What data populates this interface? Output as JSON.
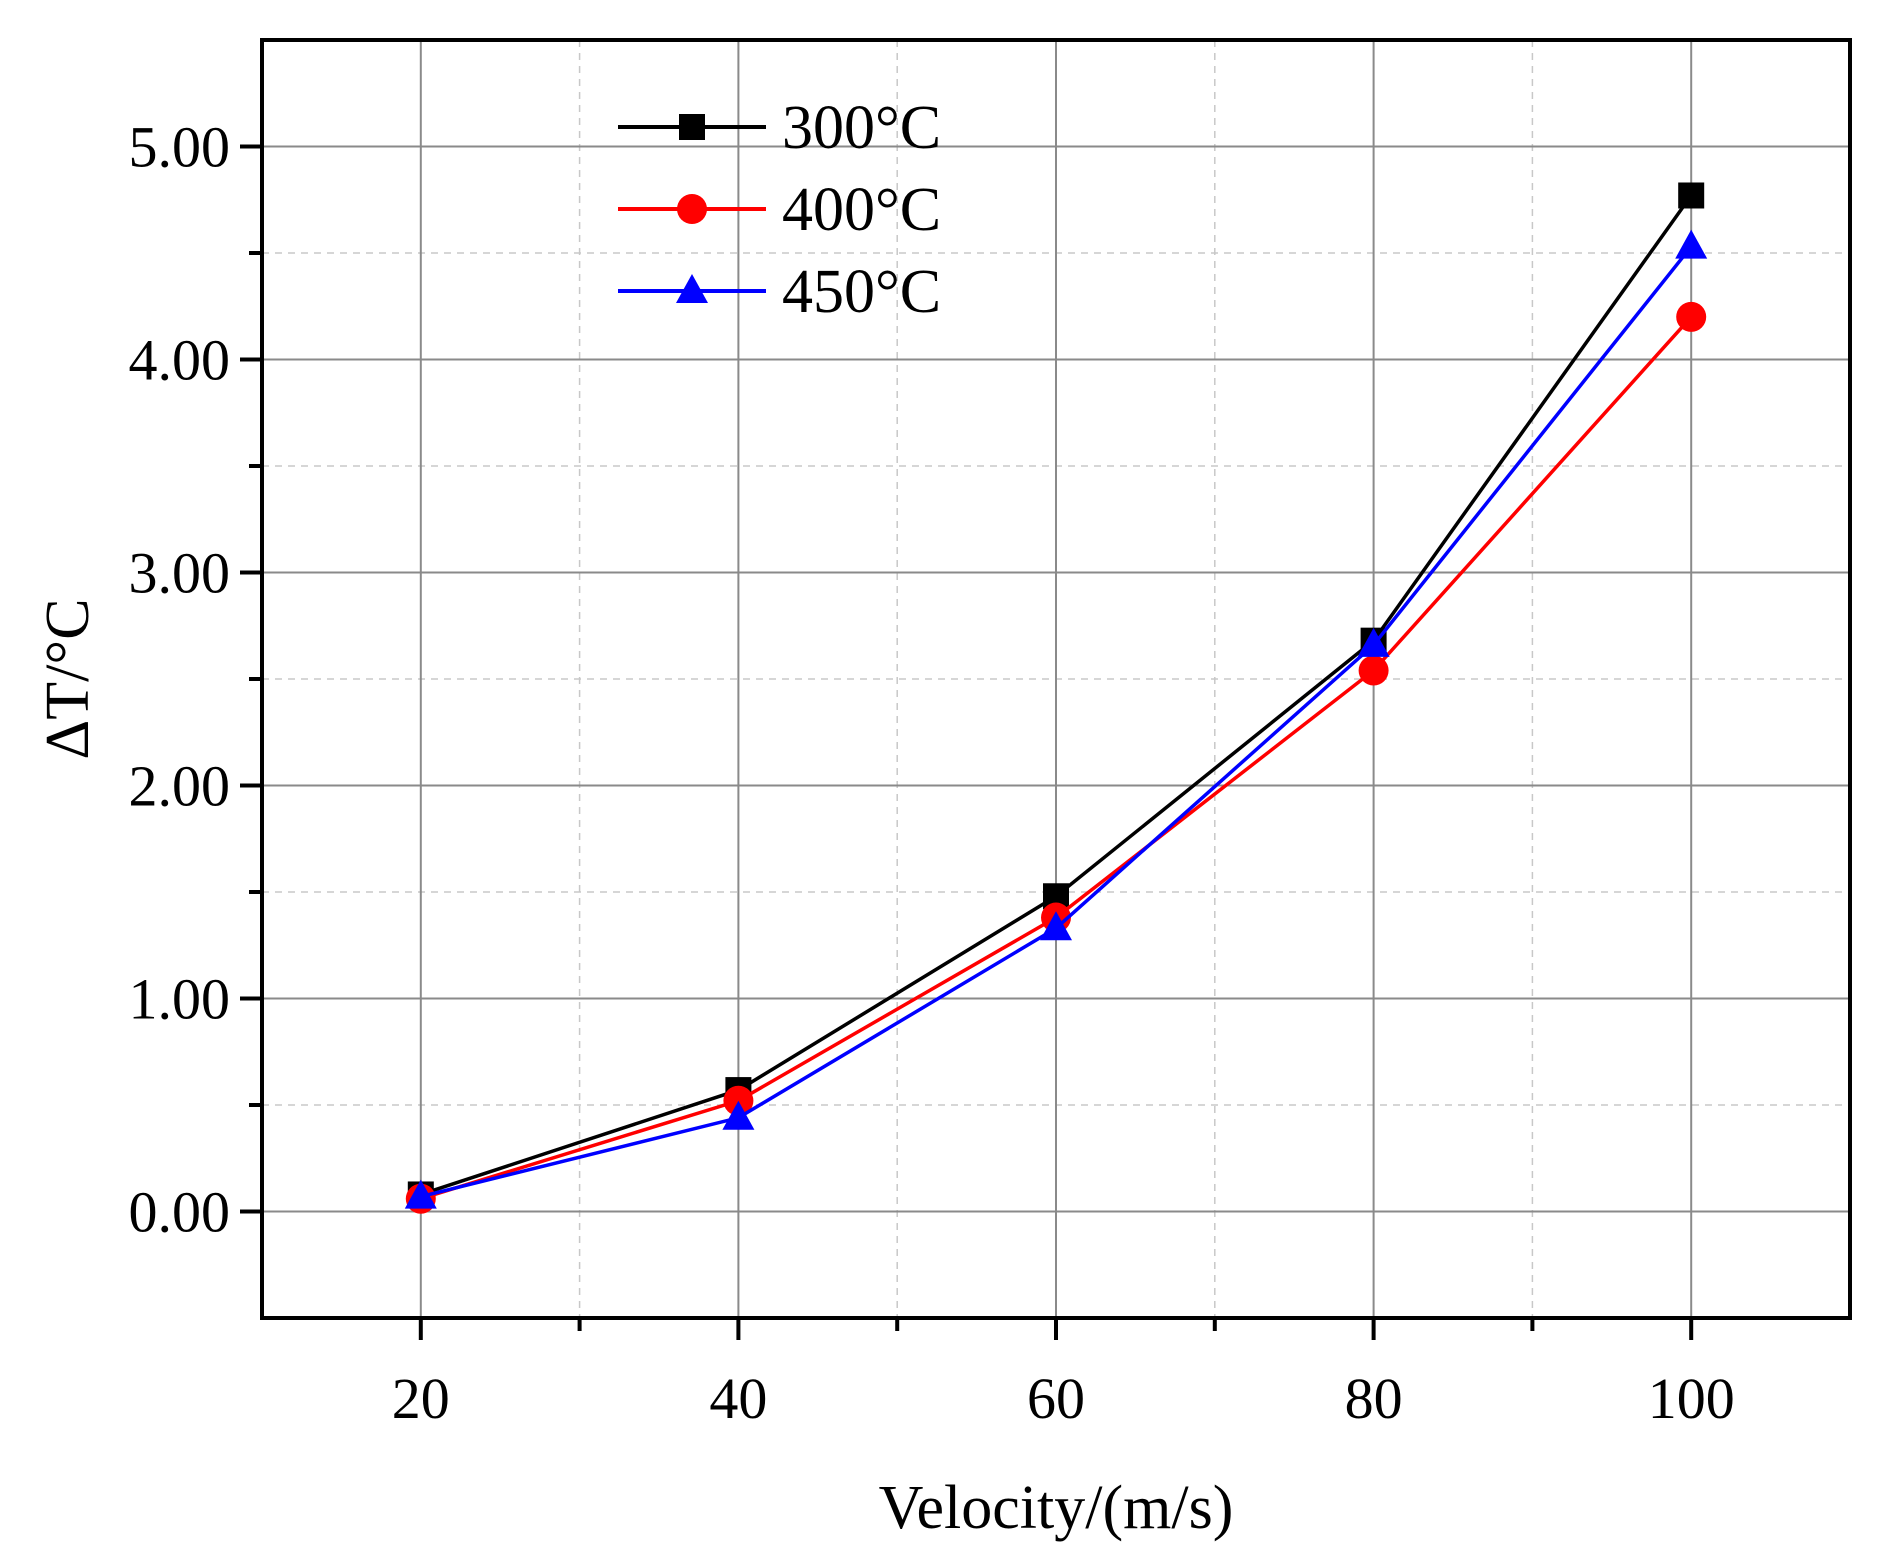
{
  "chart_data": {
    "type": "line",
    "title": "",
    "xlabel": "Velocity/(m/s)",
    "ylabel": "ΔT/°C",
    "x": [
      20,
      40,
      60,
      80,
      100
    ],
    "xlim": [
      10,
      110
    ],
    "ylim": [
      -0.5,
      5.5
    ],
    "xticks": [
      20,
      40,
      60,
      80,
      100
    ],
    "xtick_labels": [
      "20",
      "40",
      "60",
      "80",
      "100"
    ],
    "yticks": [
      0,
      1,
      2,
      3,
      4,
      5
    ],
    "ytick_labels": [
      "0.00",
      "1.00",
      "2.00",
      "3.00",
      "4.00",
      "5.00"
    ],
    "grid": true,
    "legend_position": "top-left",
    "series": [
      {
        "name": "300°C",
        "color": "#000000",
        "marker": "square",
        "values": [
          0.08,
          0.57,
          1.48,
          2.68,
          4.77
        ]
      },
      {
        "name": "400°C",
        "color": "#ff0000",
        "marker": "circle",
        "values": [
          0.06,
          0.52,
          1.38,
          2.54,
          4.2
        ]
      },
      {
        "name": "450°C",
        "color": "#0000ff",
        "marker": "triangle",
        "values": [
          0.07,
          0.44,
          1.33,
          2.66,
          4.53
        ]
      }
    ]
  }
}
